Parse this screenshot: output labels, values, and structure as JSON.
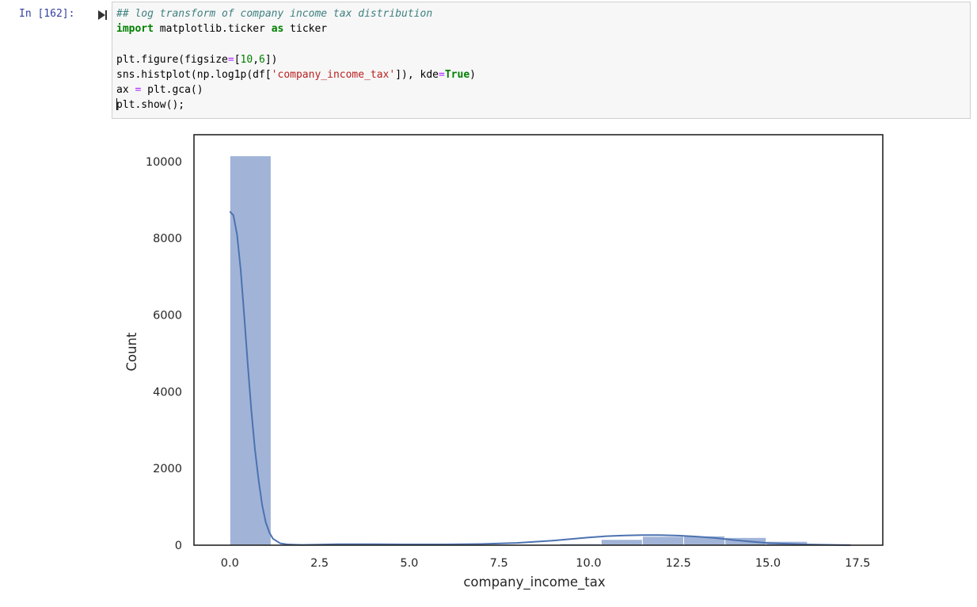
{
  "cell": {
    "prompt": "In [162]:",
    "code_lines": [
      [
        {
          "t": "## log transform of company income tax distribution",
          "c": "cm"
        }
      ],
      [
        {
          "t": "import",
          "c": "kw"
        },
        {
          "t": " matplotlib.ticker "
        },
        {
          "t": "as",
          "c": "kw"
        },
        {
          "t": " ticker"
        }
      ],
      [],
      [
        {
          "t": "plt.figure(figsize"
        },
        {
          "t": "=",
          "c": "op"
        },
        {
          "t": "["
        },
        {
          "t": "10",
          "c": "num"
        },
        {
          "t": ","
        },
        {
          "t": "6",
          "c": "num"
        },
        {
          "t": "])"
        }
      ],
      [
        {
          "t": "sns.histplot(np.log1p(df["
        },
        {
          "t": "'company_income_tax'",
          "c": "str"
        },
        {
          "t": "]), kde"
        },
        {
          "t": "=",
          "c": "op"
        },
        {
          "t": "True",
          "c": "kw"
        },
        {
          "t": ")"
        }
      ],
      [
        {
          "t": "ax "
        },
        {
          "t": "=",
          "c": "op"
        },
        {
          "t": " plt.gca()"
        }
      ],
      [
        {
          "t": "",
          "cursor": true
        },
        {
          "t": "plt.show();"
        }
      ]
    ]
  },
  "chart_data": {
    "type": "bar",
    "title": "",
    "xlabel": "company_income_tax",
    "ylabel": "Count",
    "xlim": [
      -1.0,
      18.2
    ],
    "ylim": [
      0,
      10700
    ],
    "xticks": [
      "0.0",
      "2.5",
      "5.0",
      "7.5",
      "10.0",
      "12.5",
      "15.0",
      "17.5"
    ],
    "xtick_values": [
      0,
      2.5,
      5,
      7.5,
      10,
      12.5,
      15,
      17.5
    ],
    "yticks": [
      "0",
      "2000",
      "4000",
      "6000",
      "8000",
      "10000"
    ],
    "ytick_values": [
      0,
      2000,
      4000,
      6000,
      8000,
      10000
    ],
    "grid": false,
    "bin_edges": [
      0,
      1.15,
      2.3,
      3.45,
      4.6,
      5.75,
      6.9,
      8.05,
      9.2,
      10.35,
      11.5,
      12.65,
      13.8,
      14.95,
      16.1,
      17.25
    ],
    "values": [
      10150,
      10,
      5,
      5,
      5,
      5,
      5,
      15,
      40,
      150,
      230,
      240,
      200,
      100,
      20
    ],
    "kde": {
      "x": [
        0,
        0.1,
        0.2,
        0.3,
        0.4,
        0.5,
        0.6,
        0.7,
        0.8,
        0.9,
        1.0,
        1.1,
        1.2,
        1.4,
        1.6,
        1.8,
        2.0,
        2.5,
        3,
        4,
        5,
        6,
        7,
        8,
        9,
        9.5,
        10,
        10.5,
        11,
        11.5,
        12,
        12.5,
        13,
        13.5,
        14,
        14.5,
        15,
        16,
        17,
        17.3
      ],
      "y": [
        8700,
        8600,
        8100,
        7200,
        6000,
        4700,
        3500,
        2500,
        1700,
        1050,
        600,
        330,
        170,
        50,
        20,
        12,
        8,
        15,
        25,
        25,
        20,
        20,
        30,
        60,
        120,
        160,
        200,
        235,
        255,
        262,
        262,
        250,
        225,
        190,
        140,
        95,
        55,
        20,
        5,
        2
      ]
    },
    "bar_color": "#a1b4d8",
    "bar_edge": "#ffffff",
    "kde_color": "#4c72b0"
  }
}
